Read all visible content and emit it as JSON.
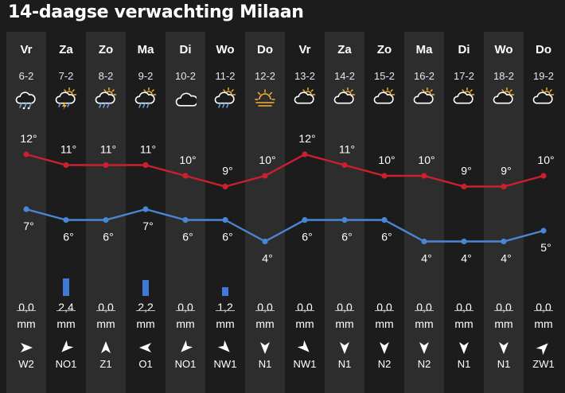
{
  "title": "14-daagse verwachting Milaan",
  "colors": {
    "high": "#cc1f2f",
    "low": "#4a86d6",
    "precip": "#3e7ad6",
    "bg": "#1c1c1c",
    "shade": "#2d2d2d"
  },
  "unit": "mm",
  "days": [
    {
      "day": "Vr",
      "date": "6-2",
      "icon": "cloud-rain-snow-icon",
      "high": 12,
      "low": 7,
      "precip": "0,0",
      "precip_mm": 0,
      "wind": "W2",
      "wind_dir": "W"
    },
    {
      "day": "Za",
      "date": "7-2",
      "icon": "thunder-sun-cloud-icon",
      "high": 11,
      "low": 6,
      "precip": "2,4",
      "precip_mm": 2.4,
      "wind": "NO1",
      "wind_dir": "NO"
    },
    {
      "day": "Zo",
      "date": "8-2",
      "icon": "sun-cloud-rain-icon",
      "high": 11,
      "low": 6,
      "precip": "0,0",
      "precip_mm": 0,
      "wind": "Z1",
      "wind_dir": "Z"
    },
    {
      "day": "Ma",
      "date": "9-2",
      "icon": "sun-cloud-rain-icon",
      "high": 11,
      "low": 7,
      "precip": "2,2",
      "precip_mm": 2.2,
      "wind": "O1",
      "wind_dir": "O"
    },
    {
      "day": "Di",
      "date": "10-2",
      "icon": "cloud-icon",
      "high": 10,
      "low": 6,
      "precip": "0,0",
      "precip_mm": 0,
      "wind": "NO1",
      "wind_dir": "NO"
    },
    {
      "day": "Wo",
      "date": "11-2",
      "icon": "sun-cloud-rain-icon",
      "high": 9,
      "low": 6,
      "precip": "1,2",
      "precip_mm": 1.2,
      "wind": "NW1",
      "wind_dir": "NW"
    },
    {
      "day": "Do",
      "date": "12-2",
      "icon": "sun-haze-icon",
      "high": 10,
      "low": 4,
      "precip": "0,0",
      "precip_mm": 0,
      "wind": "N1",
      "wind_dir": "N"
    },
    {
      "day": "Vr",
      "date": "13-2",
      "icon": "sun-cloud-icon",
      "high": 12,
      "low": 6,
      "precip": "0,0",
      "precip_mm": 0,
      "wind": "NW1",
      "wind_dir": "NW"
    },
    {
      "day": "Za",
      "date": "14-2",
      "icon": "sun-cloud-icon",
      "high": 11,
      "low": 6,
      "precip": "0,0",
      "precip_mm": 0,
      "wind": "N1",
      "wind_dir": "N"
    },
    {
      "day": "Zo",
      "date": "15-2",
      "icon": "sun-cloud-icon",
      "high": 10,
      "low": 6,
      "precip": "0,0",
      "precip_mm": 0,
      "wind": "N2",
      "wind_dir": "N"
    },
    {
      "day": "Ma",
      "date": "16-2",
      "icon": "sun-cloud-icon",
      "high": 10,
      "low": 4,
      "precip": "0,0",
      "precip_mm": 0,
      "wind": "N2",
      "wind_dir": "N"
    },
    {
      "day": "Di",
      "date": "17-2",
      "icon": "sun-cloud-icon",
      "high": 9,
      "low": 4,
      "precip": "0,0",
      "precip_mm": 0,
      "wind": "N1",
      "wind_dir": "N"
    },
    {
      "day": "Wo",
      "date": "18-2",
      "icon": "sun-cloud-icon",
      "high": 9,
      "low": 4,
      "precip": "0,0",
      "precip_mm": 0,
      "wind": "N1",
      "wind_dir": "N"
    },
    {
      "day": "Do",
      "date": "19-2",
      "icon": "sun-cloud-icon",
      "high": 10,
      "low": 5,
      "precip": "0,0",
      "precip_mm": 0,
      "wind": "ZW1",
      "wind_dir": "ZW"
    }
  ]
}
